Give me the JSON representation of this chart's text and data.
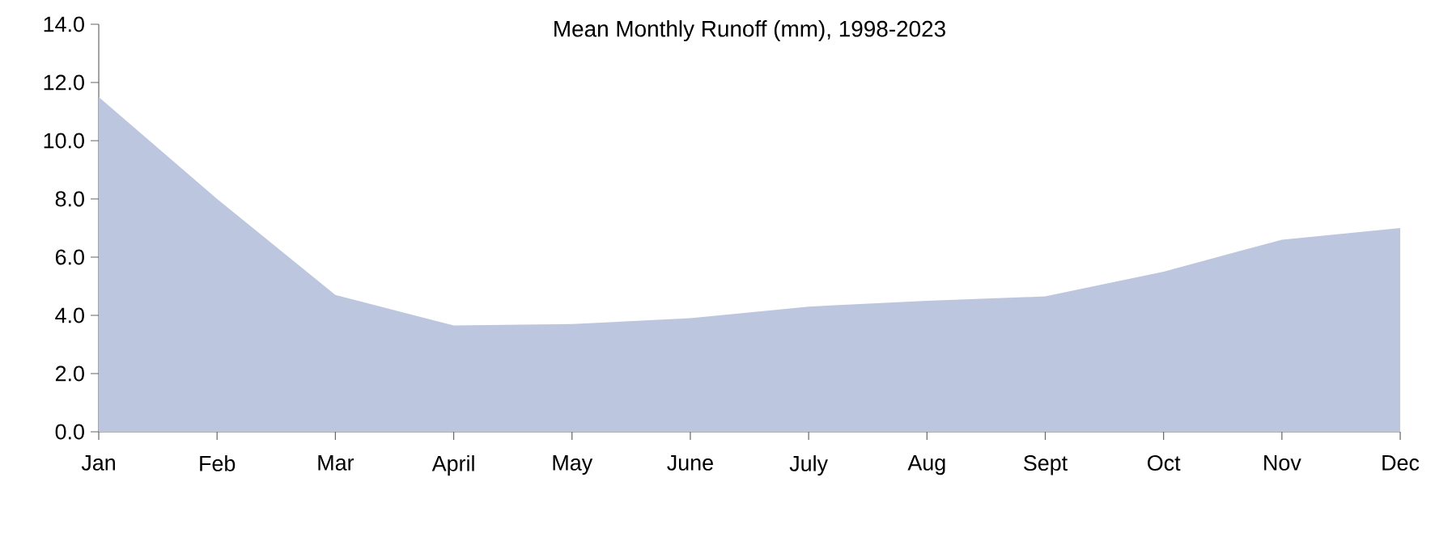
{
  "chart_data": {
    "type": "area",
    "title": "Mean Monthly Runoff (mm), 1998-2023",
    "categories": [
      "Jan",
      "Feb",
      "Mar",
      "April",
      "May",
      "June",
      "July",
      "Aug",
      "Sept",
      "Oct",
      "Nov",
      "Dec"
    ],
    "values": [
      11.5,
      8.0,
      4.7,
      3.65,
      3.7,
      3.9,
      4.3,
      4.5,
      4.65,
      5.5,
      6.6,
      7.0
    ],
    "color": "#bcc6df",
    "ylim": [
      0,
      14
    ],
    "yticks": [
      {
        "value": 0,
        "label": "0.0"
      },
      {
        "value": 2,
        "label": "2.0"
      },
      {
        "value": 4,
        "label": "4.0"
      },
      {
        "value": 6,
        "label": "6.0"
      },
      {
        "value": 8,
        "label": "8.0"
      },
      {
        "value": 10,
        "label": "10.0"
      },
      {
        "value": 12,
        "label": "12.0"
      },
      {
        "value": 14,
        "label": "14.0"
      }
    ]
  }
}
